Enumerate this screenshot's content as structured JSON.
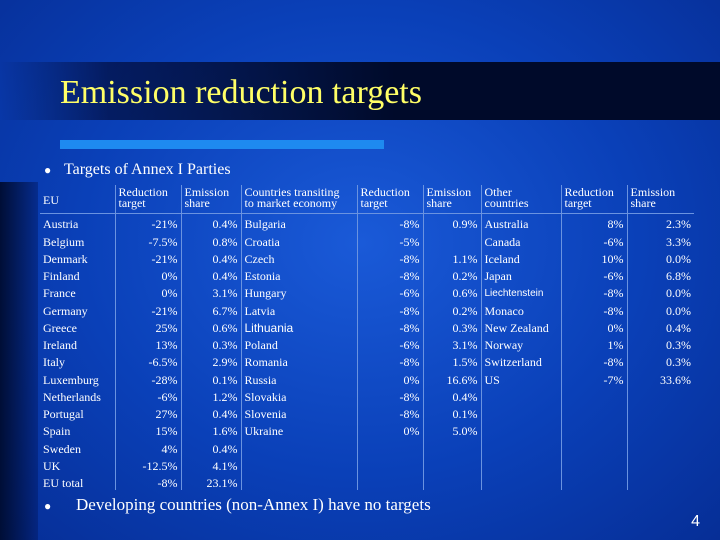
{
  "title": "Emission reduction targets",
  "bullet1": "Targets of Annex I Parties",
  "bullet2": "Developing countries (non-Annex I) have no targets",
  "page_number": "4",
  "headers": {
    "eu": "EU",
    "eu_reduction": [
      "Reduction",
      "target"
    ],
    "eu_share": [
      "Emission",
      "share"
    ],
    "transit": [
      "Countries transiting",
      "to market economy"
    ],
    "transit_reduction": [
      "Reduction",
      "target"
    ],
    "transit_share": [
      "Emission",
      "share"
    ],
    "other": [
      "Other",
      "countries"
    ],
    "other_reduction": [
      "Reduction",
      "target"
    ],
    "other_share": [
      "Emission",
      "share"
    ]
  },
  "rows": [
    [
      "Austria",
      "-21%",
      "0.4%",
      "Bulgaria",
      "-8%",
      "0.9%",
      "Australia",
      "8%",
      "2.3%"
    ],
    [
      "Belgium",
      "-7.5%",
      "0.8%",
      "Croatia",
      "-5%",
      "",
      "Canada",
      "-6%",
      "3.3%"
    ],
    [
      "Denmark",
      "-21%",
      "0.4%",
      "Czech",
      "-8%",
      "1.1%",
      "Iceland",
      "10%",
      "0.0%"
    ],
    [
      "Finland",
      "0%",
      "0.4%",
      "Estonia",
      "-8%",
      "0.2%",
      "Japan",
      "-6%",
      "6.8%"
    ],
    [
      "France",
      "0%",
      "3.1%",
      "Hungary",
      "-6%",
      "0.6%",
      "Liechtenstein",
      "-8%",
      "0.0%"
    ],
    [
      "Germany",
      "-21%",
      "6.7%",
      "Latvia",
      "-8%",
      "0.2%",
      "Monaco",
      "-8%",
      "0.0%"
    ],
    [
      "Greece",
      "25%",
      "0.6%",
      "Lithuania",
      "-8%",
      "0.3%",
      "New Zealand",
      "0%",
      "0.4%"
    ],
    [
      "Ireland",
      "13%",
      "0.3%",
      "Poland",
      "-6%",
      "3.1%",
      "Norway",
      "1%",
      "0.3%"
    ],
    [
      "Italy",
      "-6.5%",
      "2.9%",
      "Romania",
      "-8%",
      "1.5%",
      "Switzerland",
      "-8%",
      "0.3%"
    ],
    [
      "Luxemburg",
      "-28%",
      "0.1%",
      "Russia",
      "0%",
      "16.6%",
      "US",
      "-7%",
      "33.6%"
    ],
    [
      "Netherlands",
      "-6%",
      "1.2%",
      "Slovakia",
      "-8%",
      "0.4%",
      "",
      "",
      ""
    ],
    [
      "Portugal",
      "27%",
      "0.4%",
      "Slovenia",
      "-8%",
      "0.1%",
      "",
      "",
      ""
    ],
    [
      "Spain",
      "15%",
      "1.6%",
      "Ukraine",
      "0%",
      "5.0%",
      "",
      "",
      ""
    ],
    [
      "Sweden",
      "4%",
      "0.4%",
      "",
      "",
      "",
      "",
      "",
      ""
    ],
    [
      "UK",
      "-12.5%",
      "4.1%",
      "",
      "",
      "",
      "",
      "",
      ""
    ],
    [
      "EU total",
      "-8%",
      "23.1%",
      "",
      "",
      "",
      "",
      "",
      ""
    ]
  ]
}
